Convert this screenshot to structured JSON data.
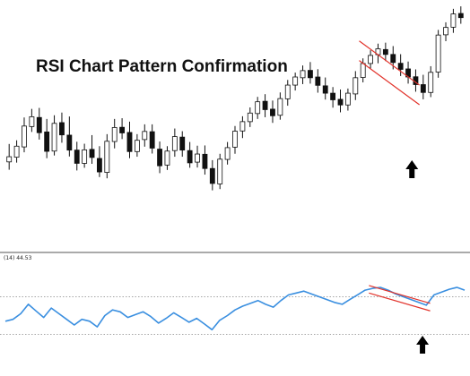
{
  "title": "RSI Chart Pattern Confirmation",
  "indicator_label": "(14) 44.53",
  "colors": {
    "bullish": "#ffffff",
    "bearish": "#111111",
    "wick": "#111111",
    "rsi_line": "#3a8fe0",
    "trendline": "#e2332b",
    "arrow": "#000000",
    "level_line": "#888888",
    "separator": "#555555"
  },
  "chart_data": [
    {
      "type": "candlestick",
      "title": "RSI Chart Pattern Confirmation",
      "ylim": [
        0,
        100
      ],
      "grid": false,
      "candles": [
        {
          "o": 36.2,
          "h": 43.5,
          "l": 33.0,
          "c": 38.3
        },
        {
          "o": 38.1,
          "h": 45.0,
          "l": 35.9,
          "c": 42.6
        },
        {
          "o": 42.3,
          "h": 54.3,
          "l": 40.1,
          "c": 50.8
        },
        {
          "o": 50.6,
          "h": 57.8,
          "l": 48.4,
          "c": 54.6
        },
        {
          "o": 54.3,
          "h": 58.2,
          "l": 45.3,
          "c": 48.1
        },
        {
          "o": 48.4,
          "h": 53.7,
          "l": 37.7,
          "c": 40.5
        },
        {
          "o": 40.6,
          "h": 55.2,
          "l": 38.8,
          "c": 51.9
        },
        {
          "o": 52.2,
          "h": 56.3,
          "l": 44.0,
          "c": 47.2
        },
        {
          "o": 47.1,
          "h": 54.7,
          "l": 38.4,
          "c": 41.0
        },
        {
          "o": 41.0,
          "h": 44.4,
          "l": 32.7,
          "c": 35.6
        },
        {
          "o": 35.6,
          "h": 43.6,
          "l": 33.8,
          "c": 41.1
        },
        {
          "o": 41.3,
          "h": 47.1,
          "l": 35.4,
          "c": 38.0
        },
        {
          "o": 37.6,
          "h": 42.6,
          "l": 30.0,
          "c": 32.1
        },
        {
          "o": 31.9,
          "h": 47.5,
          "l": 29.5,
          "c": 44.6
        },
        {
          "o": 44.5,
          "h": 53.7,
          "l": 41.7,
          "c": 50.2
        },
        {
          "o": 50.3,
          "h": 54.0,
          "l": 45.5,
          "c": 48.0
        },
        {
          "o": 48.2,
          "h": 52.6,
          "l": 37.7,
          "c": 40.4
        },
        {
          "o": 40.4,
          "h": 47.5,
          "l": 38.3,
          "c": 45.0
        },
        {
          "o": 45.3,
          "h": 51.5,
          "l": 42.4,
          "c": 48.6
        },
        {
          "o": 48.5,
          "h": 51.5,
          "l": 39.6,
          "c": 41.8
        },
        {
          "o": 41.4,
          "h": 44.5,
          "l": 31.6,
          "c": 34.6
        },
        {
          "o": 34.9,
          "h": 42.6,
          "l": 32.9,
          "c": 40.6
        },
        {
          "o": 40.8,
          "h": 49.8,
          "l": 38.3,
          "c": 46.5
        },
        {
          "o": 46.3,
          "h": 48.7,
          "l": 38.3,
          "c": 41.0
        },
        {
          "o": 40.8,
          "h": 44.3,
          "l": 33.8,
          "c": 35.8
        },
        {
          "o": 36.1,
          "h": 42.8,
          "l": 33.9,
          "c": 39.4
        },
        {
          "o": 39.3,
          "h": 42.9,
          "l": 31.0,
          "c": 33.5
        },
        {
          "o": 33.5,
          "h": 36.9,
          "l": 24.6,
          "c": 27.4
        },
        {
          "o": 27.2,
          "h": 39.5,
          "l": 25.1,
          "c": 37.3
        },
        {
          "o": 37.2,
          "h": 44.3,
          "l": 35.1,
          "c": 42.0
        },
        {
          "o": 42.2,
          "h": 50.8,
          "l": 39.5,
          "c": 48.7
        },
        {
          "o": 48.8,
          "h": 54.8,
          "l": 45.9,
          "c": 52.6
        },
        {
          "o": 52.6,
          "h": 58.4,
          "l": 50.4,
          "c": 56.1
        },
        {
          "o": 55.9,
          "h": 62.7,
          "l": 53.7,
          "c": 60.7
        },
        {
          "o": 60.9,
          "h": 63.8,
          "l": 54.4,
          "c": 57.5
        },
        {
          "o": 57.7,
          "h": 61.2,
          "l": 52.1,
          "c": 55.0
        },
        {
          "o": 55.2,
          "h": 64.5,
          "l": 53.4,
          "c": 62.0
        },
        {
          "o": 61.9,
          "h": 69.6,
          "l": 59.1,
          "c": 67.5
        },
        {
          "o": 67.5,
          "h": 72.6,
          "l": 65.3,
          "c": 70.8
        },
        {
          "o": 70.5,
          "h": 75.5,
          "l": 67.9,
          "c": 73.4
        },
        {
          "o": 73.5,
          "h": 76.9,
          "l": 68.1,
          "c": 70.5
        },
        {
          "o": 70.8,
          "h": 74.0,
          "l": 64.4,
          "c": 67.4
        },
        {
          "o": 67.2,
          "h": 70.6,
          "l": 61.6,
          "c": 64.2
        },
        {
          "o": 64.2,
          "h": 66.7,
          "l": 58.3,
          "c": 61.5
        },
        {
          "o": 61.7,
          "h": 65.7,
          "l": 56.4,
          "c": 59.4
        },
        {
          "o": 59.4,
          "h": 66.1,
          "l": 57.1,
          "c": 64.2
        },
        {
          "o": 63.9,
          "h": 73.2,
          "l": 61.4,
          "c": 70.5
        },
        {
          "o": 70.6,
          "h": 78.4,
          "l": 68.6,
          "c": 76.3
        },
        {
          "o": 76.3,
          "h": 81.7,
          "l": 74.2,
          "c": 79.6
        },
        {
          "o": 79.9,
          "h": 84.4,
          "l": 76.4,
          "c": 82.3
        },
        {
          "o": 82.0,
          "h": 84.8,
          "l": 77.3,
          "c": 80.0
        },
        {
          "o": 80.0,
          "h": 83.4,
          "l": 73.9,
          "c": 76.7
        },
        {
          "o": 76.4,
          "h": 80.1,
          "l": 71.2,
          "c": 73.9
        },
        {
          "o": 74.1,
          "h": 77.1,
          "l": 68.1,
          "c": 70.8
        },
        {
          "o": 70.9,
          "h": 73.9,
          "l": 64.8,
          "c": 67.7
        },
        {
          "o": 67.7,
          "h": 71.7,
          "l": 61.7,
          "c": 64.5
        },
        {
          "o": 64.5,
          "h": 75.2,
          "l": 62.6,
          "c": 72.7
        },
        {
          "o": 72.8,
          "h": 90.0,
          "l": 70.5,
          "c": 87.9
        },
        {
          "o": 88.0,
          "h": 93.1,
          "l": 85.4,
          "c": 91.0
        },
        {
          "o": 91.1,
          "h": 98.6,
          "l": 88.8,
          "c": 96.5
        },
        {
          "o": 96.7,
          "h": 99.6,
          "l": 92.5,
          "c": 95.0
        }
      ]
    },
    {
      "type": "line",
      "ylim": [
        0,
        100
      ],
      "grid": false,
      "levels": [
        70,
        30
      ],
      "series": [
        {
          "values": [
            44,
            46,
            52,
            62,
            55,
            48,
            58,
            52,
            46,
            40,
            46,
            44,
            38,
            50,
            56,
            54,
            48,
            51,
            54,
            49,
            42,
            47,
            53,
            48,
            43,
            47,
            41,
            35,
            45,
            50,
            56,
            60,
            63,
            66,
            62,
            59,
            66,
            72,
            74,
            76,
            73,
            70,
            67,
            64,
            62,
            67,
            72,
            77,
            79,
            80,
            77,
            73,
            70,
            67,
            64,
            61,
            72,
            75,
            78,
            80,
            77
          ]
        }
      ]
    }
  ]
}
